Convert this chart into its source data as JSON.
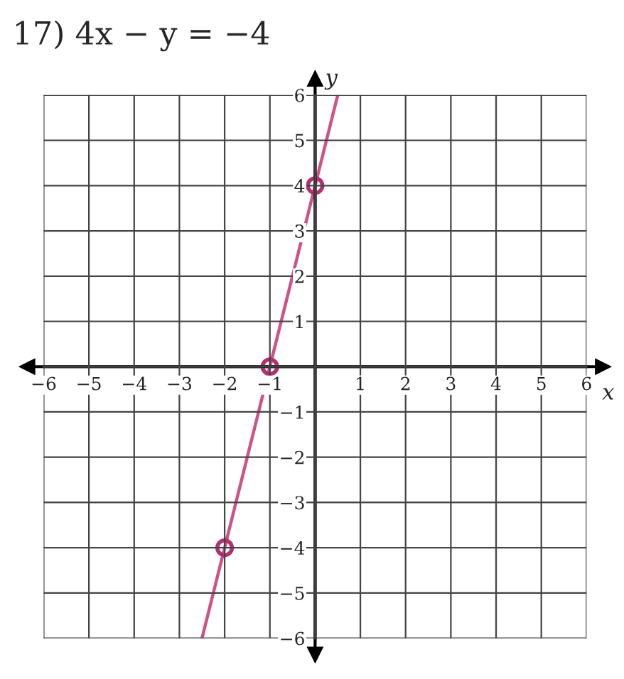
{
  "chart_data": {
    "type": "line",
    "title": "17) 4x − y = −4",
    "xlabel": "x",
    "ylabel": "y",
    "series": [
      {
        "color": "#d0508a",
        "x": [
          -2.5,
          -2,
          -1,
          0,
          0.5
        ],
        "values": [
          -6,
          -4,
          0,
          4,
          6
        ],
        "marker": "none"
      },
      {
        "type": "scatter",
        "color": "#b03070",
        "x": [
          -2,
          -1,
          0
        ],
        "values": [
          -4,
          0,
          4
        ],
        "marker": "circle"
      }
    ],
    "xlim": [
      -6,
      6
    ],
    "ylim": [
      -6,
      6
    ],
    "xticks": [
      -6,
      -5,
      -4,
      -3,
      -2,
      -1,
      {
        "value": 0,
        "label": null
      },
      1,
      2,
      3,
      4,
      5,
      6
    ],
    "yticks": [
      -6,
      -5,
      -4,
      -3,
      -2,
      -1,
      {
        "value": 0,
        "label": null
      },
      1,
      2,
      3,
      4,
      5,
      6
    ],
    "grid": true
  }
}
